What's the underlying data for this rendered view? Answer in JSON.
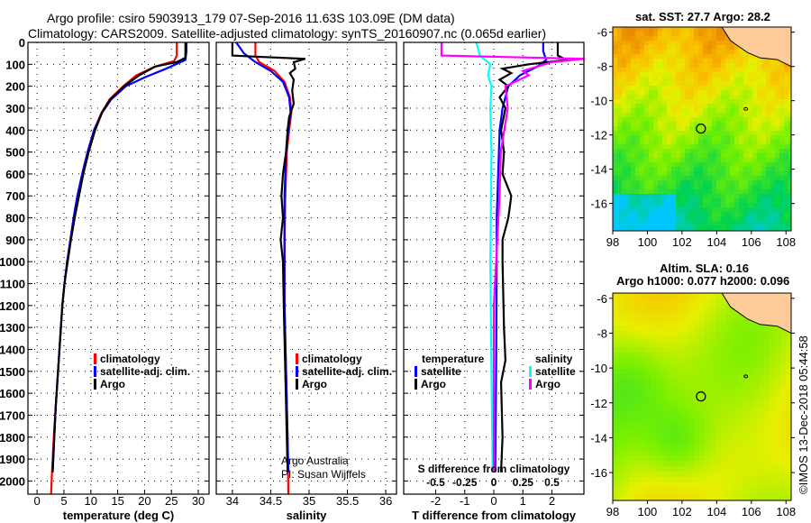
{
  "title_line1": "Argo profile: csiro 5903913_179 07-Sep-2016 11.63S 103.09E (DM data)",
  "title_line2": "Climatology: CARS2009. Satellite-adjusted climatology: synTS_20160907.nc (0.065d earlier)",
  "credit_line1": "Argo Australia",
  "credit_line2": "PI: Susan Wijffels",
  "watermark": "©IMOS 13-Dec-2018 05:44:58",
  "chart_data": [
    {
      "type": "line",
      "xlabel": "temperature (deg C)",
      "xlim": [
        -1.7,
        32
      ],
      "ylim": [
        0,
        2060
      ],
      "xticks": [
        0,
        5,
        10,
        15,
        20,
        25,
        30
      ],
      "xticklabels": [
        "0",
        "5",
        "10",
        "15",
        "20",
        "25",
        "30"
      ],
      "yticks": [
        0,
        100,
        200,
        300,
        400,
        500,
        600,
        700,
        800,
        900,
        1000,
        1100,
        1200,
        1300,
        1400,
        1500,
        1600,
        1700,
        1800,
        1900,
        2000
      ],
      "show_ylabels": true,
      "legend": [
        {
          "label": "climatology",
          "color": "#ff0000"
        },
        {
          "label": "satellite-adj. clim.",
          "color": "#0000ff"
        },
        {
          "label": "Argo",
          "color": "#000000"
        }
      ],
      "series": [
        {
          "name": "climatology",
          "color": "#ff0000",
          "points": [
            [
              26.0,
              0
            ],
            [
              26.0,
              60
            ],
            [
              25.5,
              85
            ],
            [
              22,
              110
            ],
            [
              18.5,
              150
            ],
            [
              16,
              200
            ],
            [
              13.5,
              260
            ],
            [
              12,
              320
            ],
            [
              10.6,
              400
            ],
            [
              9.4,
              500
            ],
            [
              8.4,
              600
            ],
            [
              7.5,
              700
            ],
            [
              6.8,
              800
            ],
            [
              6.2,
              900
            ],
            [
              5.6,
              1000
            ],
            [
              5.1,
              1100
            ],
            [
              4.7,
              1200
            ],
            [
              4.3,
              1350
            ],
            [
              3.9,
              1500
            ],
            [
              3.5,
              1650
            ],
            [
              3.1,
              1800
            ],
            [
              2.8,
              1950
            ],
            [
              2.6,
              2060
            ]
          ]
        },
        {
          "name": "satellite-adj. clim.",
          "color": "#0000ff",
          "points": [
            [
              27.8,
              0
            ],
            [
              27.8,
              40
            ],
            [
              27.6,
              80
            ],
            [
              24,
              120
            ],
            [
              20,
              160
            ],
            [
              16.5,
              200
            ],
            [
              13.8,
              260
            ],
            [
              12.1,
              320
            ],
            [
              10.6,
              400
            ],
            [
              9.4,
              500
            ],
            [
              8.4,
              600
            ],
            [
              7.5,
              700
            ],
            [
              6.8,
              800
            ],
            [
              6.2,
              900
            ],
            [
              5.6,
              1000
            ],
            [
              5.1,
              1100
            ],
            [
              4.7,
              1200
            ],
            [
              4.3,
              1350
            ],
            [
              3.9,
              1500
            ],
            [
              3.5,
              1650
            ],
            [
              3.2,
              1800
            ],
            [
              2.9,
              1960
            ]
          ]
        },
        {
          "name": "Argo",
          "color": "#000000",
          "points": [
            [
              27.6,
              0
            ],
            [
              27.6,
              70
            ],
            [
              26,
              90
            ],
            [
              22,
              110
            ],
            [
              19,
              150
            ],
            [
              16.2,
              200
            ],
            [
              13.6,
              260
            ],
            [
              12.1,
              320
            ],
            [
              10.8,
              400
            ],
            [
              9.6,
              500
            ],
            [
              8.6,
              600
            ],
            [
              7.8,
              700
            ],
            [
              7.0,
              800
            ],
            [
              6.3,
              900
            ],
            [
              5.7,
              1000
            ],
            [
              5.1,
              1100
            ],
            [
              4.7,
              1200
            ],
            [
              4.3,
              1350
            ],
            [
              3.9,
              1500
            ],
            [
              3.5,
              1650
            ],
            [
              3.2,
              1800
            ],
            [
              2.9,
              1960
            ]
          ]
        }
      ]
    },
    {
      "type": "line",
      "xlabel": "salinity",
      "xlim": [
        33.79,
        36.14
      ],
      "ylim": [
        0,
        2060
      ],
      "xticks": [
        34,
        34.5,
        35,
        35.5,
        36
      ],
      "xticklabels": [
        "34",
        "34.5",
        "35",
        "35.5",
        "36"
      ],
      "yticks": [
        0,
        100,
        200,
        300,
        400,
        500,
        600,
        700,
        800,
        900,
        1000,
        1100,
        1200,
        1300,
        1400,
        1500,
        1600,
        1700,
        1800,
        1900,
        2000
      ],
      "show_ylabels": false,
      "legend": [
        {
          "label": "climatology",
          "color": "#ff0000"
        },
        {
          "label": "satellite-adj. clim.",
          "color": "#0000ff"
        },
        {
          "label": "Argo",
          "color": "#000000"
        }
      ],
      "series": [
        {
          "name": "climatology",
          "color": "#ff0000",
          "points": [
            [
              34.3,
              0
            ],
            [
              34.3,
              60
            ],
            [
              34.35,
              90
            ],
            [
              34.55,
              130
            ],
            [
              34.68,
              180
            ],
            [
              34.75,
              250
            ],
            [
              34.77,
              320
            ],
            [
              34.74,
              400
            ],
            [
              34.71,
              500
            ],
            [
              34.69,
              700
            ],
            [
              34.68,
              900
            ],
            [
              34.68,
              1200
            ],
            [
              34.7,
              1500
            ],
            [
              34.72,
              1800
            ],
            [
              34.73,
              2060
            ]
          ]
        },
        {
          "name": "satellite-adj. clim.",
          "color": "#0000ff",
          "points": [
            [
              34.05,
              0
            ],
            [
              34.15,
              50
            ],
            [
              34.3,
              90
            ],
            [
              34.5,
              130
            ],
            [
              34.66,
              180
            ],
            [
              34.74,
              250
            ],
            [
              34.76,
              320
            ],
            [
              34.73,
              400
            ],
            [
              34.7,
              500
            ],
            [
              34.68,
              700
            ],
            [
              34.68,
              900
            ],
            [
              34.68,
              1200
            ],
            [
              34.7,
              1500
            ],
            [
              34.72,
              1800
            ],
            [
              34.73,
              1960
            ]
          ]
        },
        {
          "name": "Argo",
          "color": "#000000",
          "points": [
            [
              34.0,
              0
            ],
            [
              34.0,
              60
            ],
            [
              34.3,
              65
            ],
            [
              34.95,
              75
            ],
            [
              34.8,
              90
            ],
            [
              34.82,
              120
            ],
            [
              34.75,
              140
            ],
            [
              34.8,
              170
            ],
            [
              34.78,
              220
            ],
            [
              34.8,
              280
            ],
            [
              34.74,
              340
            ],
            [
              34.72,
              400
            ],
            [
              34.7,
              500
            ],
            [
              34.66,
              600
            ],
            [
              34.64,
              700
            ],
            [
              34.66,
              800
            ],
            [
              34.63,
              900
            ],
            [
              34.66,
              1000
            ],
            [
              34.67,
              1200
            ],
            [
              34.69,
              1500
            ],
            [
              34.71,
              1800
            ],
            [
              34.72,
              1960
            ]
          ]
        }
      ]
    },
    {
      "type": "line",
      "xlabel": "T difference from climatology",
      "xlim": [
        -3.1,
        3.1
      ],
      "ylim": [
        0,
        2060
      ],
      "xticks": [
        -2,
        -1,
        0,
        1,
        2
      ],
      "xticklabels": [
        "-2",
        "-1",
        "0",
        "1",
        "2"
      ],
      "yticks": [
        0,
        100,
        200,
        300,
        400,
        500,
        600,
        700,
        800,
        900,
        1000,
        1100,
        1200,
        1300,
        1400,
        1500,
        1600,
        1700,
        1800,
        1900,
        2000
      ],
      "show_ylabels": false,
      "secondary_xlabel": "S difference from climatology",
      "secondary_xticklabels": [
        "-0.5",
        "-0.25",
        "0",
        "0.25",
        "0.5"
      ],
      "legend_left_title": "temperature",
      "legend_right_title": "salinity",
      "legend": [
        {
          "label": "satellite",
          "color": "#0000ff"
        },
        {
          "label": "Argo",
          "color": "#000000"
        },
        {
          "label": "satellite",
          "color": "#00ffff"
        },
        {
          "label": "Argo",
          "color": "#ff00ff"
        }
      ],
      "series": [
        {
          "name": "temperature satellite",
          "color": "#0000ff",
          "points": [
            [
              1.7,
              0
            ],
            [
              1.7,
              40
            ],
            [
              1.8,
              80
            ],
            [
              1.5,
              110
            ],
            [
              0.9,
              150
            ],
            [
              0.5,
              200
            ],
            [
              0.3,
              300
            ],
            [
              0.2,
              400
            ],
            [
              0.15,
              600
            ],
            [
              0.1,
              800
            ],
            [
              0.1,
              1000
            ],
            [
              0.08,
              1500
            ],
            [
              0.05,
              1960
            ]
          ]
        },
        {
          "name": "temperature Argo",
          "color": "#000000",
          "points": [
            [
              2.2,
              0
            ],
            [
              2.2,
              60
            ],
            [
              2.5,
              80
            ],
            [
              1.2,
              100
            ],
            [
              0.3,
              120
            ],
            [
              0.6,
              140
            ],
            [
              0.2,
              170
            ],
            [
              0.5,
              200
            ],
            [
              0.2,
              250
            ],
            [
              0.4,
              300
            ],
            [
              0.25,
              400
            ],
            [
              0.35,
              500
            ],
            [
              0.3,
              600
            ],
            [
              0.6,
              700
            ],
            [
              0.5,
              800
            ],
            [
              0.3,
              900
            ],
            [
              0.3,
              1000
            ],
            [
              0.35,
              1300
            ],
            [
              0.4,
              1450
            ],
            [
              0.25,
              1550
            ],
            [
              0.3,
              1800
            ],
            [
              0.25,
              1960
            ]
          ]
        },
        {
          "name": "salinity satellite",
          "color": "#00ffff",
          "points": [
            [
              -0.15,
              0
            ],
            [
              -0.12,
              60
            ],
            [
              -0.03,
              100
            ],
            [
              -0.05,
              150
            ],
            [
              -0.02,
              200
            ],
            [
              -0.03,
              300
            ],
            [
              -0.02,
              500
            ],
            [
              -0.03,
              1000
            ],
            [
              -0.02,
              1500
            ],
            [
              -0.01,
              1960
            ]
          ]
        },
        {
          "name": "salinity Argo",
          "color": "#ff00ff",
          "points": [
            [
              -0.45,
              0
            ],
            [
              -0.45,
              60
            ],
            [
              0.78,
              75
            ],
            [
              0.5,
              90
            ],
            [
              0.25,
              130
            ],
            [
              0.3,
              150
            ],
            [
              0.1,
              200
            ],
            [
              0.12,
              300
            ],
            [
              0.06,
              500
            ],
            [
              0.05,
              700
            ],
            [
              0.03,
              900
            ],
            [
              0.0,
              1200
            ],
            [
              0.0,
              1960
            ]
          ]
        }
      ]
    }
  ],
  "maps": [
    {
      "title": "sat. SST: 27.7 Argo: 28.2",
      "subtitle": "",
      "kind": "sst",
      "lon": [
        98,
        108.3
      ],
      "lat": [
        -5.7,
        -17.6
      ],
      "lonticks": [
        "98",
        "100",
        "102",
        "104",
        "106",
        "108"
      ],
      "latticks": [
        "-6",
        "-8",
        "-10",
        "-12",
        "-14",
        "-16"
      ],
      "marker": [
        103.09,
        -11.63
      ]
    },
    {
      "title": "Altim. SLA: 0.16",
      "subtitle": "Argo h1000: 0.077 h2000: 0.096",
      "kind": "sla",
      "lon": [
        98,
        108.3
      ],
      "lat": [
        -5.7,
        -17.6
      ],
      "lonticks": [
        "98",
        "100",
        "102",
        "104",
        "106",
        "108"
      ],
      "latticks": [
        "-6",
        "-8",
        "-10",
        "-12",
        "-14",
        "-16"
      ],
      "marker": [
        103.09,
        -11.63
      ]
    }
  ]
}
